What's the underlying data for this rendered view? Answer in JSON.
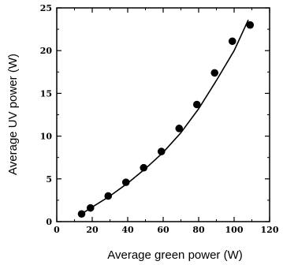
{
  "chart_data": {
    "type": "scatter",
    "title": "",
    "xlabel": "Average green power (W)",
    "ylabel": "Average UV power (W)",
    "xlim": [
      0,
      120
    ],
    "ylim": [
      0,
      25
    ],
    "xticks": [
      0,
      20,
      40,
      60,
      80,
      100,
      120
    ],
    "yticks": [
      0,
      5,
      10,
      15,
      20,
      25
    ],
    "grid": false,
    "legend": "none",
    "series": [
      {
        "type": "scatter",
        "marker": "filled-circle",
        "color": "#000000",
        "x": [
          14,
          19,
          29,
          39,
          49,
          59,
          69,
          79,
          89,
          99,
          109
        ],
        "y": [
          0.9,
          1.6,
          3.0,
          4.6,
          6.3,
          8.2,
          10.9,
          13.7,
          17.4,
          21.1,
          23.0
        ]
      },
      {
        "type": "line",
        "color": "#000000",
        "x": [
          14,
          20,
          30,
          40,
          50,
          60,
          70,
          80,
          90,
          100,
          108
        ],
        "y": [
          0.9,
          1.7,
          3.0,
          4.5,
          6.2,
          8.1,
          10.4,
          13.2,
          16.5,
          20.0,
          23.6
        ]
      }
    ]
  }
}
